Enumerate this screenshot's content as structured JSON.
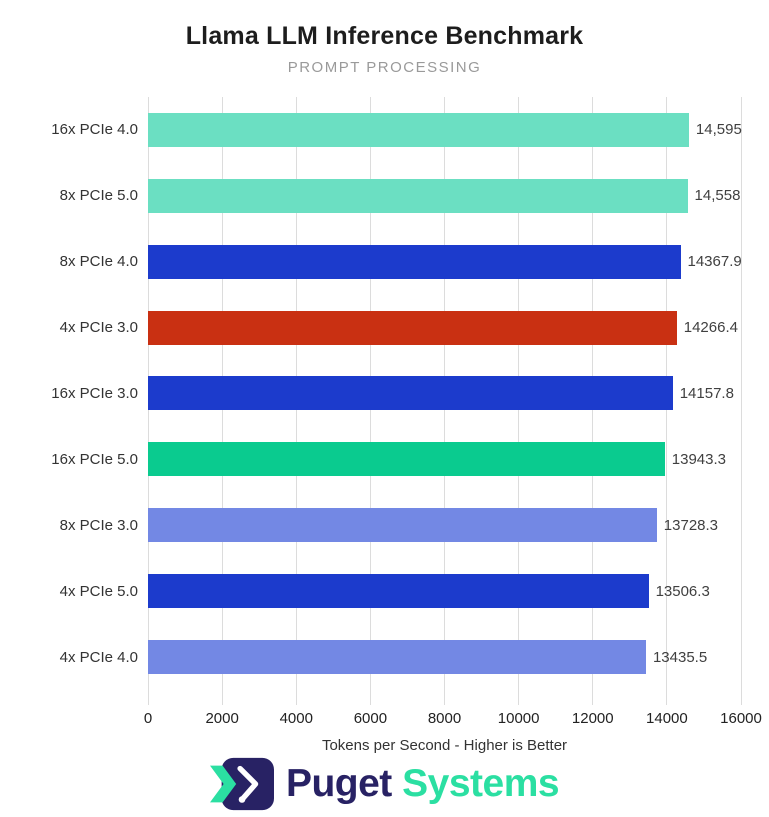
{
  "header": {
    "title": "Llama LLM Inference Benchmark",
    "subtitle": "PROMPT PROCESSING"
  },
  "chart_data": {
    "type": "bar",
    "orientation": "horizontal",
    "title": "Llama LLM Inference Benchmark",
    "subtitle": "PROMPT PROCESSING",
    "categories": [
      "16x PCIe 4.0",
      "8x PCIe 5.0",
      "8x PCIe 4.0",
      "4x PCIe 3.0",
      "16x PCIe 3.0",
      "16x PCIe 5.0",
      "8x PCIe 3.0",
      "4x PCIe 5.0",
      "4x PCIe 4.0"
    ],
    "values": [
      14595,
      14558,
      14367.9,
      14266.4,
      14157.8,
      13943.3,
      13728.3,
      13506.3,
      13435.5
    ],
    "value_labels": [
      "14,595",
      "14,558",
      "14367.9",
      "14266.4",
      "14157.8",
      "13943.3",
      "13728.3",
      "13506.3",
      "13435.5"
    ],
    "bar_colors": [
      "#6BDFC2",
      "#6BDFC2",
      "#1C3BCC",
      "#C93012",
      "#1C3BCC",
      "#0ACB8F",
      "#7388E4",
      "#1C3BCC",
      "#7388E4"
    ],
    "xlabel": "Tokens per Second - Higher is Better",
    "xlim": [
      0,
      16000
    ],
    "x_ticks": [
      0,
      2000,
      4000,
      6000,
      8000,
      10000,
      12000,
      14000,
      16000
    ],
    "x_tick_labels": [
      "0",
      "2000",
      "4000",
      "6000",
      "8000",
      "10000",
      "12000",
      "14000",
      "16000"
    ],
    "grid": "vertical",
    "legend": "none",
    "grid_color": "#dcdcdc"
  },
  "footer": {
    "logo_text_primary": "Puget",
    "logo_text_secondary": "Systems",
    "logo_navy": "#282264",
    "logo_green": "#2BDFA2"
  }
}
